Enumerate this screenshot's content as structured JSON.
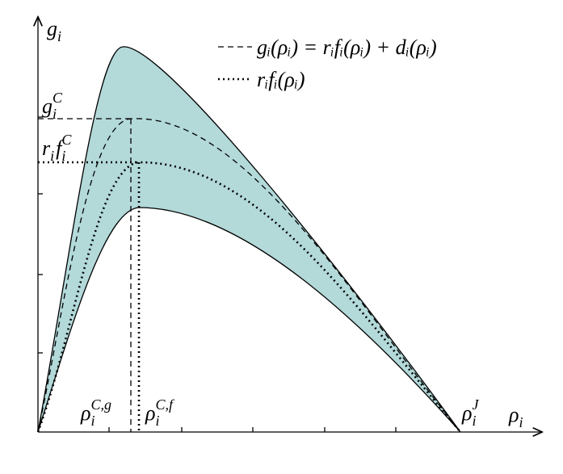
{
  "labels": {
    "y_axis": {
      "base": "g",
      "sub": "i"
    },
    "x_axis": {
      "base": "ρ",
      "sub": "i"
    },
    "g_critical": {
      "base": "g",
      "sub": "i",
      "sup": "C"
    },
    "f_critical": {
      "base": "r",
      "sub": "i",
      "base2": "f",
      "sub2": "i",
      "sup": "C"
    },
    "rho_critical_g": {
      "base": "ρ",
      "sub": "i",
      "sup": "C,g"
    },
    "rho_critical_f": {
      "base": "ρ",
      "sub": "i",
      "sup": "C,f"
    },
    "rho_jam": {
      "base": "ρ",
      "sub": "i",
      "sup": "J"
    }
  },
  "legend": [
    "gᵢ(ρᵢ) = rᵢfᵢ(ρᵢ) + dᵢ(ρᵢ)",
    "rᵢfᵢ(ρᵢ)"
  ]
}
